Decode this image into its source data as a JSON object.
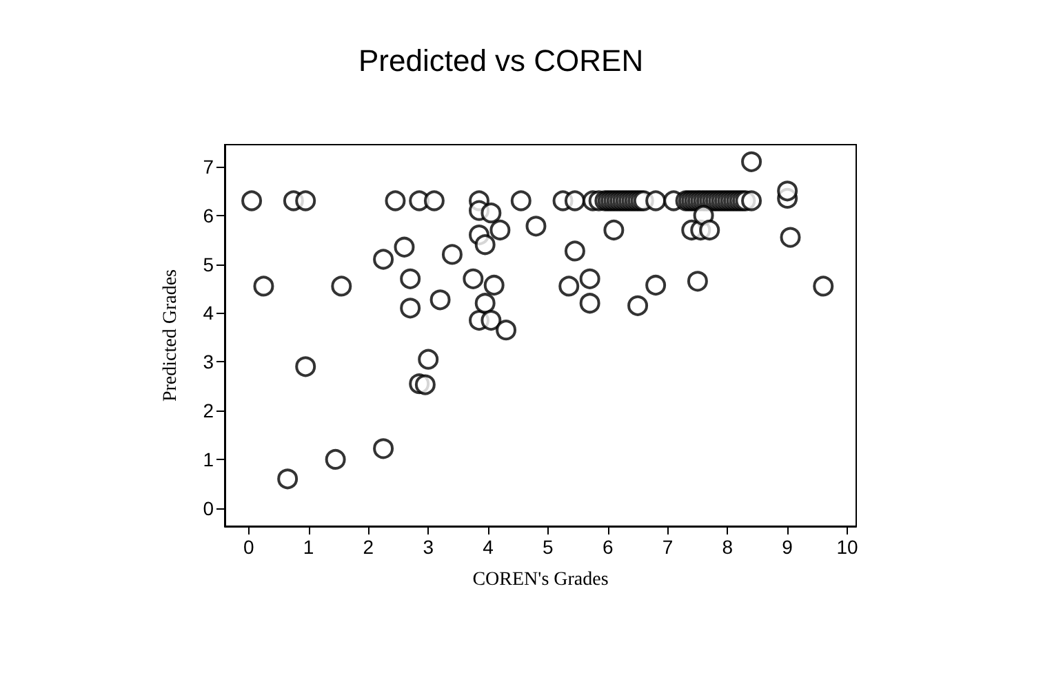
{
  "chart_data": {
    "type": "scatter",
    "title": "Predicted vs COREN",
    "xlabel": "COREN's Grades",
    "ylabel": "Predicted Grades",
    "xlim": [
      -0.4,
      10.15
    ],
    "ylim": [
      -0.37,
      7.45
    ],
    "xticks": [
      0,
      1,
      2,
      3,
      4,
      5,
      6,
      7,
      8,
      9,
      10
    ],
    "yticks": [
      0,
      1,
      2,
      3,
      4,
      5,
      6,
      7
    ],
    "grid": false,
    "marker": "circle",
    "series": [
      {
        "color": "#000000",
        "x": [
          0.05,
          0.75,
          0.95,
          2.45,
          2.85,
          3.1,
          3.85,
          4.55,
          5.25,
          5.45,
          5.75,
          5.85,
          5.95,
          6.0,
          6.05,
          6.1,
          6.15,
          6.2,
          6.25,
          6.3,
          6.35,
          6.4,
          6.45,
          6.5,
          6.55,
          6.6,
          6.8,
          7.1,
          7.3,
          7.35,
          7.4,
          7.45,
          7.5,
          7.55,
          7.6,
          7.65,
          7.7,
          7.75,
          7.8,
          7.85,
          7.9,
          7.95,
          8.0,
          8.05,
          8.1,
          8.15,
          8.2,
          8.25,
          8.3,
          8.4,
          9.0,
          9.0,
          0.25,
          0.95,
          0.65,
          1.45,
          1.55,
          2.25,
          2.25,
          2.6,
          2.7,
          2.7,
          2.85,
          2.95,
          3.0,
          3.2,
          3.4,
          3.75,
          3.85,
          3.85,
          3.85,
          3.95,
          3.95,
          4.05,
          4.05,
          4.1,
          4.2,
          4.3,
          4.8,
          5.35,
          5.45,
          5.7,
          5.7,
          6.1,
          6.5,
          6.8,
          7.4,
          7.5,
          7.55,
          7.6,
          7.7,
          8.4,
          9.05,
          9.6
        ],
        "values": [
          6.3,
          6.3,
          6.3,
          6.3,
          6.3,
          6.3,
          6.3,
          6.3,
          6.3,
          6.3,
          6.3,
          6.3,
          6.3,
          6.3,
          6.3,
          6.3,
          6.3,
          6.3,
          6.3,
          6.3,
          6.3,
          6.3,
          6.3,
          6.3,
          6.3,
          6.3,
          6.3,
          6.3,
          6.3,
          6.3,
          6.3,
          6.3,
          6.3,
          6.3,
          6.3,
          6.3,
          6.3,
          6.3,
          6.3,
          6.3,
          6.3,
          6.3,
          6.3,
          6.3,
          6.3,
          6.3,
          6.3,
          6.3,
          6.3,
          6.3,
          6.35,
          6.5,
          4.55,
          2.9,
          0.6,
          1.0,
          4.55,
          1.22,
          5.1,
          5.35,
          4.7,
          4.1,
          2.55,
          2.53,
          3.05,
          4.27,
          5.2,
          4.7,
          6.1,
          5.6,
          3.85,
          5.4,
          4.2,
          6.05,
          3.85,
          4.57,
          5.7,
          3.65,
          5.78,
          4.55,
          5.27,
          4.7,
          4.2,
          5.7,
          4.15,
          4.57,
          5.7,
          4.65,
          5.7,
          6.0,
          5.7,
          7.1,
          5.55,
          4.55
        ]
      }
    ]
  }
}
